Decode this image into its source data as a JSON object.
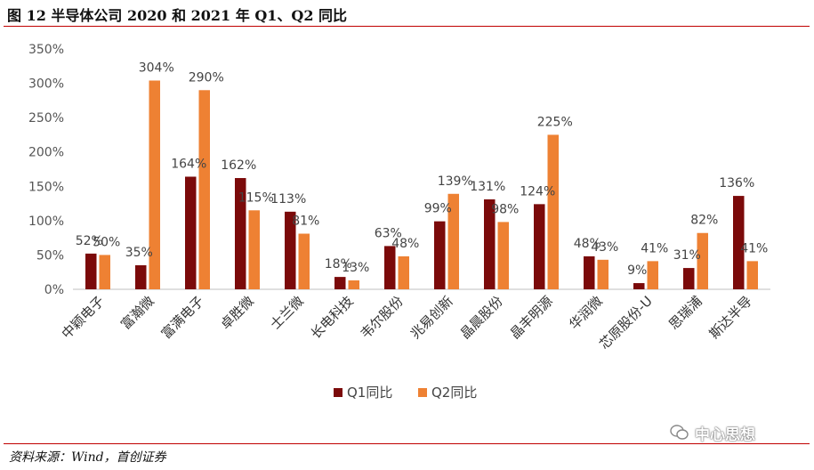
{
  "title": "图  12  半导体公司 2020 和 2021 年 Q1、Q2 同比",
  "source": "资料来源：Wind，首创证券",
  "watermark": "中心思想",
  "colors": {
    "q1": "#7B0A0A",
    "q2": "#EE8133",
    "rule": "#C00000"
  },
  "chart_data": {
    "type": "bar",
    "title": "半导体公司 2020 和 2021 年 Q1、Q2 同比",
    "xlabel": "",
    "ylabel": "",
    "ylim": [
      0,
      350
    ],
    "yticks": [
      "0%",
      "50%",
      "100%",
      "150%",
      "200%",
      "250%",
      "300%",
      "350%"
    ],
    "categories": [
      "中颖电子",
      "富瀚微",
      "富满电子",
      "卓胜微",
      "士兰微",
      "长电科技",
      "韦尔股份",
      "兆易创新",
      "晶晨股份",
      "晶丰明源",
      "华润微",
      "芯原股份-U",
      "思瑞浦",
      "斯达半导"
    ],
    "series": [
      {
        "name": "Q1同比",
        "values": [
          52,
          35,
          164,
          162,
          113,
          18,
          63,
          99,
          131,
          124,
          48,
          9,
          31,
          136
        ],
        "labels": [
          "52%",
          "35%",
          "164%",
          "162%",
          "113%",
          "18%",
          "63%",
          "99%",
          "131%",
          "124%",
          "48%",
          "9%",
          "31%",
          "136%"
        ]
      },
      {
        "name": "Q2同比",
        "values": [
          50,
          304,
          290,
          115,
          81,
          13,
          48,
          139,
          98,
          225,
          43,
          41,
          82,
          41
        ],
        "labels": [
          "50%",
          "304%",
          "290%",
          "115%",
          "81%",
          "13%",
          "48%",
          "139%",
          "98%",
          "225%",
          "43%",
          "41%",
          "82%",
          "41%"
        ]
      }
    ],
    "legend": "bottom-center",
    "grid": false
  }
}
